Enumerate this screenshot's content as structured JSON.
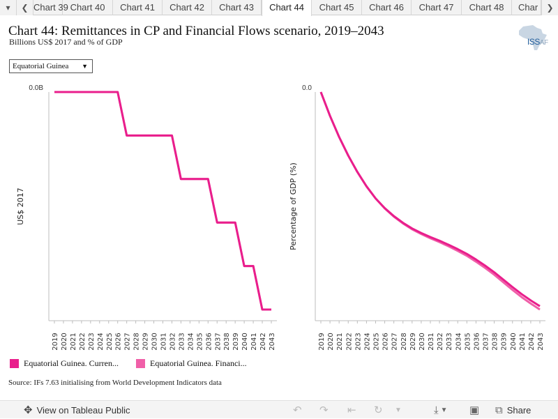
{
  "tabs": {
    "items": [
      "Chart 39",
      "Chart 40",
      "Chart 41",
      "Chart 42",
      "Chart 43",
      "Chart 44",
      "Chart 45",
      "Chart 46",
      "Chart 47",
      "Chart 48",
      "Char"
    ],
    "active_index": 5
  },
  "header": {
    "title": "Chart 44: Remittances in CP and Financial Flows scenario, 2019–2043",
    "subtitle": "Billions US$ 2017 and % of GDP",
    "logo_text": "ISS",
    "logo_text_suffix": "AF"
  },
  "filter": {
    "selected": "Equatorial Guinea"
  },
  "legend": [
    {
      "label": "Equatorial Guinea. Curren...",
      "color": "#e91e8c"
    },
    {
      "label": "Equatorial Guinea. Financi...",
      "color": "#f05fa8"
    }
  ],
  "source": "Source: IFs 7.63 initialising from World Development Indicators data",
  "toolbar": {
    "view_label": "View on Tableau Public",
    "share_label": "Share"
  },
  "chart_data": [
    {
      "type": "line",
      "ylabel": "US$ 2017",
      "ytick_labels": [
        "0.0B"
      ],
      "x": [
        2019,
        2020,
        2021,
        2022,
        2023,
        2024,
        2025,
        2026,
        2027,
        2028,
        2029,
        2030,
        2031,
        2032,
        2033,
        2034,
        2035,
        2036,
        2037,
        2038,
        2039,
        2040,
        2041,
        2042,
        2043
      ],
      "series": [
        {
          "name": "Equatorial Guinea. Curren...",
          "color": "#e91e8c",
          "values": [
            0.0,
            0.0,
            0.0,
            0.0,
            0.0,
            0.0,
            0.0,
            0.0,
            -0.0011,
            -0.0011,
            -0.0011,
            -0.0011,
            -0.0011,
            -0.0011,
            -0.0022,
            -0.0022,
            -0.0022,
            -0.0022,
            -0.0033,
            -0.0033,
            -0.0033,
            -0.0044,
            -0.0044,
            -0.0055,
            -0.0055
          ]
        },
        {
          "name": "Equatorial Guinea. Financi...",
          "color": "#f05fa8",
          "values": [
            0.0,
            0.0,
            0.0,
            0.0,
            0.0,
            0.0,
            0.0,
            0.0,
            -0.0011,
            -0.0011,
            -0.0011,
            -0.0011,
            -0.0011,
            -0.0011,
            -0.0022,
            -0.0022,
            -0.0022,
            -0.0022,
            -0.0033,
            -0.0033,
            -0.0033,
            -0.0044,
            -0.0044,
            -0.0055,
            -0.0055
          ]
        }
      ],
      "ylim": [
        -0.0055,
        0.0
      ]
    },
    {
      "type": "line",
      "ylabel": "Percentage of GDP (%)",
      "ytick_labels": [
        "0.0"
      ],
      "x": [
        2019,
        2020,
        2021,
        2022,
        2023,
        2024,
        2025,
        2026,
        2027,
        2028,
        2029,
        2030,
        2031,
        2032,
        2033,
        2034,
        2035,
        2036,
        2037,
        2038,
        2039,
        2040,
        2041,
        2042,
        2043
      ],
      "series": [
        {
          "name": "Equatorial Guinea. Curren...",
          "color": "#e91e8c",
          "values": [
            0.0,
            -0.0136,
            -0.0256,
            -0.0362,
            -0.0455,
            -0.0537,
            -0.0606,
            -0.0661,
            -0.0707,
            -0.0745,
            -0.0777,
            -0.0803,
            -0.0826,
            -0.0847,
            -0.087,
            -0.0895,
            -0.0922,
            -0.0954,
            -0.0989,
            -0.1027,
            -0.1069,
            -0.1111,
            -0.1151,
            -0.1187,
            -0.122
          ]
        },
        {
          "name": "Equatorial Guinea. Financi...",
          "color": "#f05fa8",
          "values": [
            0.0,
            -0.0136,
            -0.0256,
            -0.0362,
            -0.0455,
            -0.0537,
            -0.0606,
            -0.0663,
            -0.071,
            -0.0749,
            -0.0782,
            -0.0809,
            -0.0833,
            -0.0855,
            -0.0879,
            -0.0905,
            -0.0933,
            -0.0966,
            -0.1002,
            -0.1041,
            -0.1084,
            -0.1127,
            -0.1168,
            -0.1205,
            -0.1239
          ]
        }
      ],
      "ylim": [
        -0.1239,
        0.0
      ]
    }
  ]
}
